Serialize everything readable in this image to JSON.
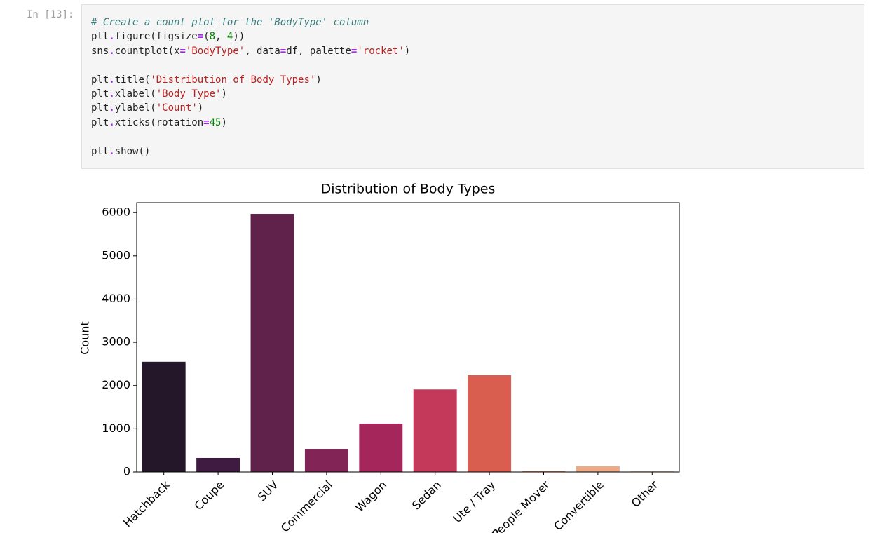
{
  "cell": {
    "prompt": "In [13]:",
    "code": [
      "# Create a count plot for the 'BodyType' column",
      "plt.figure(figsize=(8, 4))",
      "sns.countplot(x='BodyType', data=df, palette='rocket')",
      "",
      "plt.title('Distribution of Body Types')",
      "plt.xlabel('Body Type')",
      "plt.ylabel('Count')",
      "plt.xticks(rotation=45)",
      "",
      "plt.show()"
    ]
  },
  "chart_data": {
    "type": "bar",
    "title": "Distribution of Body Types",
    "y_label": "Count",
    "categories": [
      "Hatchback",
      "Coupe",
      "SUV",
      "Commercial",
      "Wagon",
      "Sedan",
      "Ute / Tray",
      "People Mover",
      "Convertible",
      "Other"
    ],
    "values": [
      2550,
      325,
      5970,
      535,
      1120,
      1910,
      2240,
      20,
      130,
      15
    ],
    "colors": [
      "#241729",
      "#3f1b41",
      "#60224b",
      "#832457",
      "#a4265b",
      "#c4385a",
      "#d95e50",
      "#e78b67",
      "#ecaa86",
      "#f0c3a4"
    ],
    "ylim": [
      0,
      6230
    ],
    "yticks": [
      0,
      1000,
      2000,
      3000,
      4000,
      5000,
      6000
    ]
  }
}
